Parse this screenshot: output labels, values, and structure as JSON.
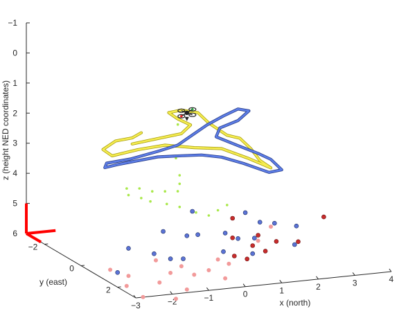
{
  "chart_data": {
    "type": "scatter3d",
    "xlabel": "x  (north)",
    "ylabel": "y (east)",
    "zlabel": "z (height NED coordinates)",
    "xlim": [
      -3,
      4
    ],
    "ylim": [
      -3,
      3
    ],
    "zlim": [
      -1,
      6
    ],
    "z_reversed": true,
    "x_ticks": [
      "−3",
      "−2",
      "−1",
      "0",
      "1",
      "2",
      "3",
      "4"
    ],
    "y_ticks": [
      "−2",
      "0",
      "2"
    ],
    "z_ticks": [
      "−1",
      "0",
      "1",
      "2",
      "3",
      "4",
      "5",
      "6"
    ],
    "grid": false,
    "legend": "none",
    "series": [
      {
        "kind": "points",
        "style": "blue-dots",
        "color": "#5b73d6",
        "edge": "#1a2a5e",
        "points": [
          [
            -2.3,
            0.6,
            6.1
          ],
          [
            -1.8,
            0.2,
            5.5
          ],
          [
            -1.3,
            0.6,
            5.6
          ],
          [
            -1.0,
            0.9,
            5.7
          ],
          [
            -0.7,
            1.0,
            5.7
          ],
          [
            -0.3,
            0.4,
            5.2
          ],
          [
            0.0,
            0.4,
            5.2
          ],
          [
            0.4,
            1.0,
            5.6
          ],
          [
            0.7,
            0.5,
            5.2
          ],
          [
            1.0,
            1.4,
            5.6
          ],
          [
            1.3,
            0.9,
            5.3
          ],
          [
            1.7,
            0.4,
            5.0
          ],
          [
            2.0,
            0.6,
            5.0
          ],
          [
            2.1,
            1.5,
            5.4
          ],
          [
            2.4,
            1.0,
            5.0
          ],
          [
            0.9,
            0.8,
            5.3
          ],
          [
            1.5,
            0.0,
            4.8
          ],
          [
            -0.8,
            0.1,
            5.1
          ],
          [
            0.2,
            -0.3,
            4.7
          ]
        ]
      },
      {
        "kind": "points",
        "style": "red-dots",
        "color": "#c72c2c",
        "edge": "#6b0f0f",
        "points": [
          [
            0.6,
            1.2,
            5.7
          ],
          [
            0.9,
            1.3,
            5.8
          ],
          [
            1.2,
            1.0,
            5.5
          ],
          [
            1.5,
            0.7,
            5.3
          ],
          [
            1.8,
            1.1,
            5.4
          ],
          [
            2.3,
            1.3,
            5.4
          ],
          [
            1.1,
            0.1,
            4.9
          ],
          [
            3.4,
            0.5,
            5.0
          ],
          [
            0.8,
            0.7,
            5.3
          ],
          [
            1.4,
            1.3,
            5.6
          ]
        ]
      },
      {
        "kind": "points",
        "style": "pink-dots",
        "color": "#f29a9a",
        "points": [
          [
            -2.5,
            1.5,
            6.2
          ],
          [
            -2.2,
            1.8,
            6.5
          ],
          [
            -1.6,
            1.5,
            6.2
          ],
          [
            -1.2,
            1.3,
            6.0
          ],
          [
            -1.0,
            1.8,
            6.4
          ],
          [
            -0.6,
            1.4,
            6.1
          ],
          [
            -0.2,
            1.4,
            6.0
          ],
          [
            0.1,
            1.7,
            6.2
          ],
          [
            0.4,
            1.3,
            5.9
          ],
          [
            -1.8,
            2.6,
            6.8
          ],
          [
            -2.3,
            1.2,
            6.0
          ],
          [
            -1.4,
            0.9,
            5.7
          ],
          [
            0.2,
            1.1,
            5.8
          ],
          [
            1.4,
            0.9,
            5.4
          ],
          [
            1.9,
            0.6,
            5.1
          ],
          [
            -2.6,
            0.8,
            5.9
          ],
          [
            -1.5,
            2.2,
            6.5
          ],
          [
            -0.8,
            1.1,
            5.9
          ]
        ]
      },
      {
        "kind": "points",
        "style": "green-dots",
        "color": "#a9e84a",
        "points": [
          [
            -1.5,
            -0.5,
            3.8
          ],
          [
            -1.2,
            -0.4,
            3.8
          ],
          [
            -0.9,
            -0.3,
            3.9
          ],
          [
            -0.6,
            -0.2,
            3.9
          ],
          [
            -0.3,
            -0.1,
            3.9
          ],
          [
            -0.7,
            0.1,
            4.2
          ],
          [
            -1.1,
            0.0,
            4.1
          ],
          [
            -0.4,
            0.2,
            4.3
          ],
          [
            0.0,
            0.3,
            4.5
          ],
          [
            0.3,
            0.4,
            4.6
          ],
          [
            0.6,
            0.3,
            4.5
          ],
          [
            0.9,
            0.2,
            4.4
          ],
          [
            -0.2,
            -0.2,
            3.7
          ],
          [
            -0.1,
            -0.4,
            3.5
          ],
          [
            -0.1,
            -0.6,
            3.0
          ],
          [
            0.0,
            -0.8,
            2.7
          ],
          [
            0.1,
            -1.0,
            2.4
          ],
          [
            0.2,
            -1.1,
            2.1
          ],
          [
            -1.3,
            -0.1,
            4.0
          ],
          [
            -1.6,
            -0.2,
            3.9
          ]
        ]
      },
      {
        "kind": "path",
        "style": "yellow-trajectory",
        "color": "#f5ec50",
        "edge": "#a89f10",
        "points": [
          [
            -0.8,
            -1.6,
            2.8
          ],
          [
            -0.4,
            -1.5,
            2.7
          ],
          [
            0.0,
            -1.4,
            2.6
          ],
          [
            0.4,
            -1.3,
            2.5
          ],
          [
            0.6,
            -1.2,
            2.2
          ],
          [
            0.3,
            -1.3,
            2.0
          ],
          [
            0.1,
            -1.4,
            1.8
          ],
          [
            0.5,
            -1.5,
            1.8
          ],
          [
            0.9,
            -1.4,
            1.9
          ],
          [
            1.1,
            -1.2,
            2.2
          ],
          [
            1.4,
            -0.8,
            2.5
          ],
          [
            1.7,
            -0.7,
            2.6
          ],
          [
            1.9,
            -0.5,
            2.9
          ],
          [
            2.0,
            -0.2,
            3.2
          ],
          [
            2.2,
            0.0,
            3.4
          ],
          [
            1.7,
            -0.2,
            3.1
          ],
          [
            1.1,
            -0.5,
            2.8
          ],
          [
            0.5,
            -0.8,
            2.8
          ],
          [
            -0.2,
            -1.0,
            2.7
          ],
          [
            -0.9,
            -1.1,
            2.8
          ],
          [
            -1.5,
            -1.3,
            3.0
          ],
          [
            -1.7,
            -1.4,
            2.8
          ],
          [
            -1.3,
            -1.5,
            2.6
          ],
          [
            -0.8,
            -1.6,
            2.6
          ],
          [
            -0.5,
            -1.7,
            2.5
          ]
        ]
      },
      {
        "kind": "path",
        "style": "blue-trajectory",
        "color": "#5d7ee8",
        "edge": "#2a3e88",
        "points": [
          [
            -1.8,
            -1.0,
            3.1
          ],
          [
            -1.2,
            -0.9,
            3.0
          ],
          [
            -0.5,
            -0.8,
            2.8
          ],
          [
            0.1,
            -0.9,
            2.7
          ],
          [
            0.6,
            -1.1,
            2.5
          ],
          [
            1.1,
            -1.3,
            2.3
          ],
          [
            1.6,
            -1.4,
            2.1
          ],
          [
            2.1,
            -1.6,
            2.0
          ],
          [
            2.4,
            -1.6,
            2.1
          ],
          [
            2.0,
            -1.4,
            2.3
          ],
          [
            1.4,
            -1.2,
            2.4
          ],
          [
            1.2,
            -1.0,
            2.6
          ],
          [
            1.6,
            -0.6,
            2.8
          ],
          [
            2.0,
            -0.3,
            3.0
          ],
          [
            2.3,
            -0.2,
            3.2
          ],
          [
            2.5,
            0.0,
            3.5
          ],
          [
            2.1,
            0.1,
            3.5
          ],
          [
            1.5,
            -0.1,
            3.2
          ],
          [
            1.0,
            -0.3,
            3.0
          ],
          [
            0.5,
            -0.4,
            2.9
          ],
          [
            0.0,
            -0.5,
            2.9
          ],
          [
            -0.6,
            -0.6,
            2.9
          ],
          [
            -1.1,
            -0.7,
            3.0
          ],
          [
            -1.6,
            -0.8,
            3.1
          ],
          [
            -1.9,
            -0.9,
            3.2
          ],
          [
            -1.8,
            -1.0,
            3.1
          ]
        ]
      },
      {
        "kind": "marker",
        "style": "quadrotor",
        "color": "#222222",
        "points": [
          [
            0.55,
            -1.3,
            1.85
          ]
        ]
      },
      {
        "kind": "frame",
        "style": "red-axes",
        "color": "#ff0000",
        "points": [
          [
            -3,
            -3,
            6
          ],
          [
            -2.2,
            -3,
            6
          ],
          [
            -3,
            -2.2,
            6
          ],
          [
            -3,
            -3,
            5
          ]
        ]
      }
    ]
  }
}
